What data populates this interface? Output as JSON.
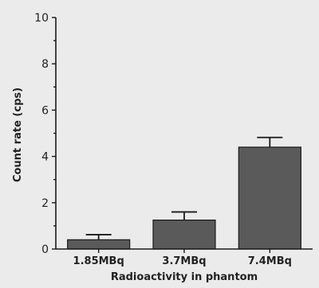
{
  "chart_data": {
    "type": "bar",
    "categories": [
      "1.85MBq",
      "3.7MBq",
      "7.4MBq"
    ],
    "values": [
      0.4,
      1.25,
      4.4
    ],
    "errors": [
      0.22,
      0.35,
      0.42
    ],
    "xlabel": "Radioactivity in phantom",
    "ylabel": "Count rate (cps)",
    "ylim": [
      0,
      10
    ],
    "yticks": [
      0,
      2,
      4,
      6,
      8,
      10
    ],
    "grid": false,
    "bar_color": "#5a5a5a"
  }
}
